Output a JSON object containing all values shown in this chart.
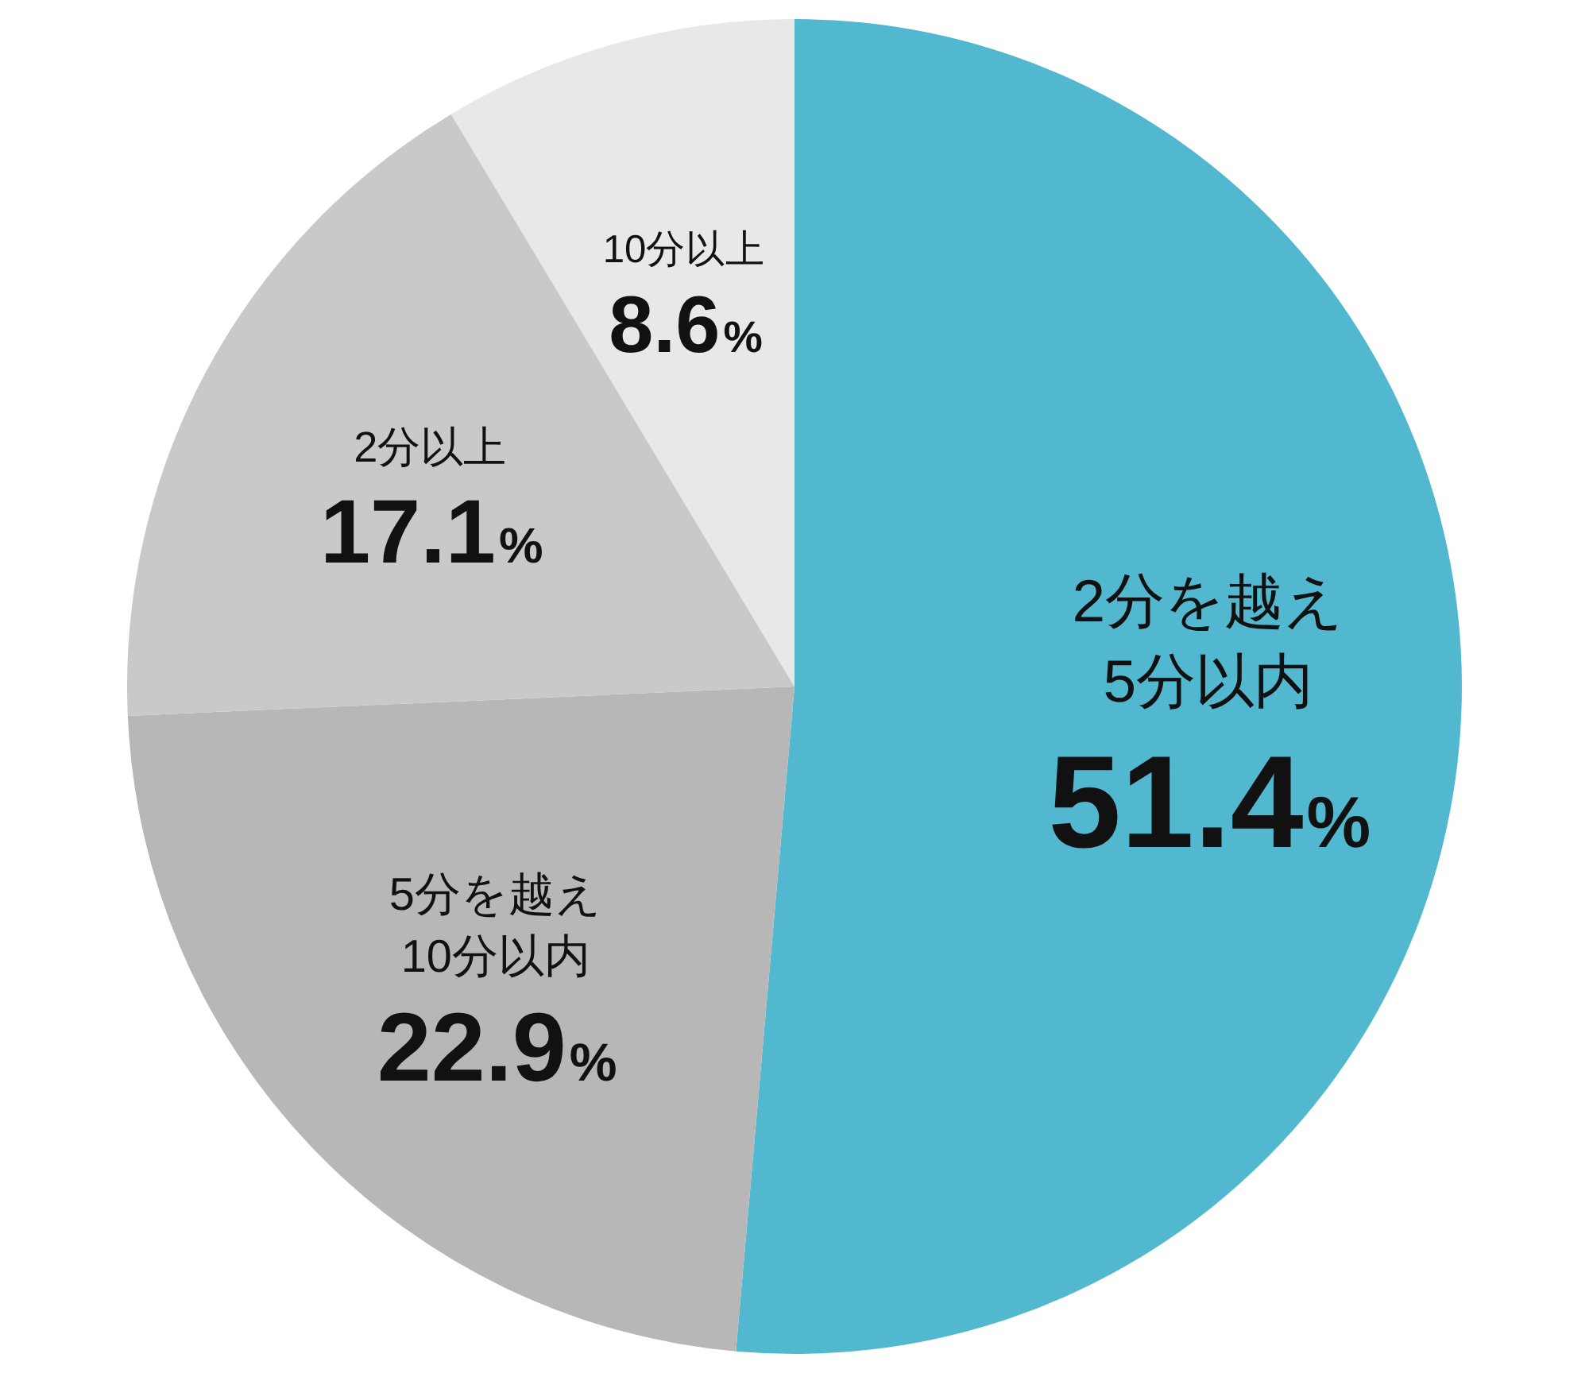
{
  "chart_data": {
    "type": "pie",
    "categories": [
      "2分を越え\n5分以内",
      "5分を越え\n10分以内",
      "2分以上",
      "10分以上"
    ],
    "values": [
      51.4,
      22.9,
      17.1,
      8.6
    ],
    "colors": [
      "#52b8d0",
      "#b7b7b7",
      "#c9c9c9",
      "#e8e8e8"
    ],
    "value_labels": [
      "51.4%",
      "22.9%",
      "17.1%",
      "8.6%"
    ],
    "legend": false
  }
}
